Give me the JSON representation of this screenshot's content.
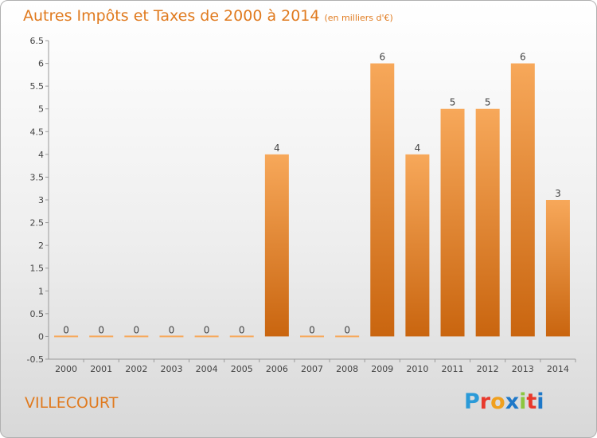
{
  "title": "Autres Impôts et Taxes de 2000 à 2014",
  "unit": "(en milliers d'€)",
  "place": "VILLECOURT",
  "logo": {
    "letters": [
      "P",
      "r",
      "o",
      "x",
      "i",
      "t",
      "i"
    ],
    "colors": [
      "#2a9ad8",
      "#e8392c",
      "#f0a01e",
      "#1e78c8",
      "#8cc63f",
      "#e8392c",
      "#1e78c8"
    ]
  },
  "colors": {
    "accent": "#e07a1e",
    "bar_top": "#f7a85a",
    "bar_bottom": "#c9650f"
  },
  "chart_data": {
    "type": "bar",
    "categories": [
      "2000",
      "2001",
      "2002",
      "2003",
      "2004",
      "2005",
      "2006",
      "2007",
      "2008",
      "2009",
      "2010",
      "2011",
      "2012",
      "2013",
      "2014"
    ],
    "values": [
      0,
      0,
      0,
      0,
      0,
      0,
      4,
      0,
      0,
      6,
      4,
      5,
      5,
      6,
      3
    ],
    "data_labels": [
      "0",
      "0",
      "0",
      "0",
      "0",
      "0",
      "4",
      "0",
      "0",
      "6",
      "4",
      "5",
      "5",
      "6",
      "3"
    ],
    "title": "Autres Impôts et Taxes de 2000 à 2014",
    "xlabel": "",
    "ylabel": "",
    "ylim": [
      -0.5,
      6.5
    ],
    "yticks": [
      -0.5,
      0,
      0.5,
      1,
      1.5,
      2,
      2.5,
      3,
      3.5,
      4,
      4.5,
      5,
      5.5,
      6,
      6.5
    ],
    "ytick_labels": [
      "-0.5",
      "0",
      "0.5",
      "1",
      "1.5",
      "2",
      "2.5",
      "3",
      "3.5",
      "4",
      "4.5",
      "5",
      "5.5",
      "6",
      "6.5"
    ],
    "grid": false,
    "legend": "none"
  }
}
